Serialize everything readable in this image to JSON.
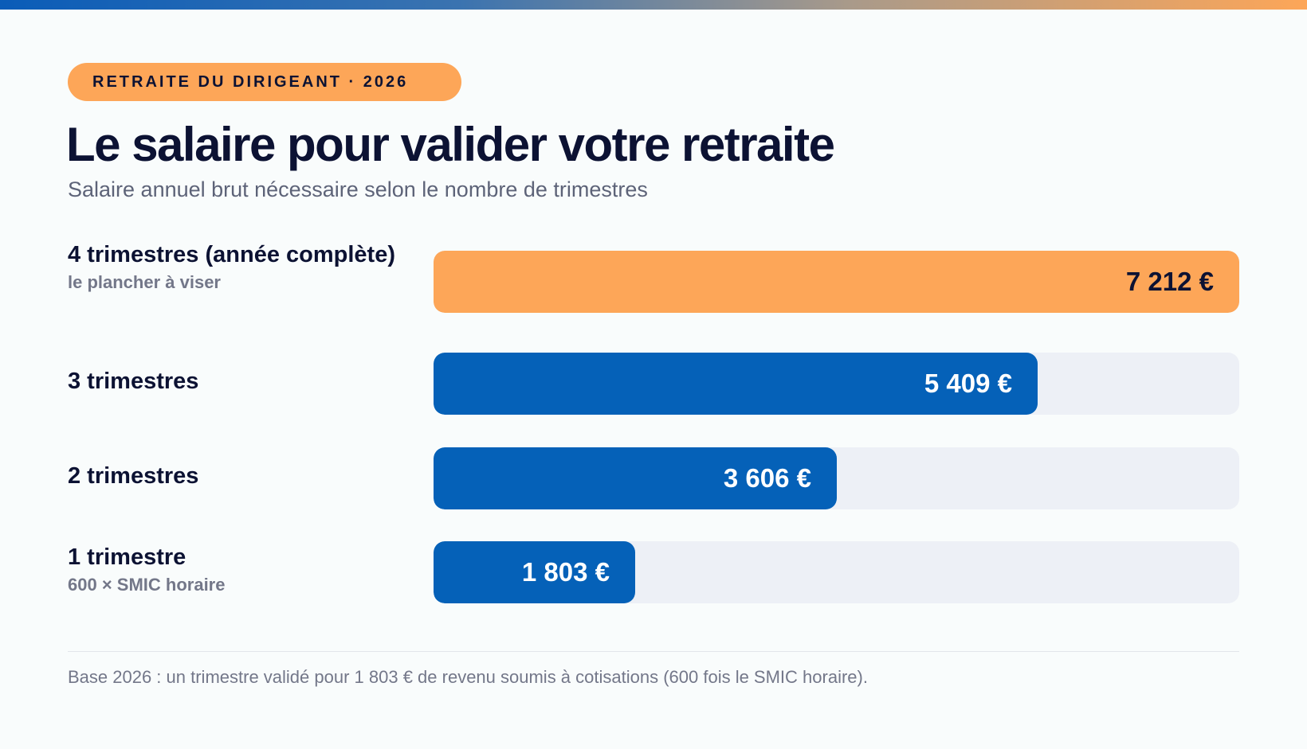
{
  "kicker": "RETRAITE DU DIRIGEANT · 2026",
  "title": "Le salaire pour valider votre retraite",
  "subtitle": "Salaire annuel brut nécessaire selon le nombre de trimestres",
  "colors": {
    "accent": "#fda658",
    "primary": "#0561b8",
    "track": "#edf0f6",
    "text": "#0c1233"
  },
  "chart_data": {
    "type": "bar",
    "orientation": "horizontal",
    "title": "Le salaire pour valider votre retraite",
    "subtitle": "Salaire annuel brut nécessaire selon le nombre de trimestres",
    "categories": [
      "4 trimestres (année complète)",
      "3 trimestres",
      "2 trimestres",
      "1 trimestre"
    ],
    "values": [
      7212,
      5409,
      3606,
      1803
    ],
    "value_labels": [
      "7 212 €",
      "5 409 €",
      "3 606 €",
      "1 803 €"
    ],
    "notes": [
      "le plancher à viser",
      "",
      "",
      "600 × SMIC horaire"
    ],
    "xlim": [
      0,
      7212
    ],
    "highlight_index": 0,
    "grid": false
  },
  "footnote": "Base 2026 : un trimestre validé pour 1 803 € de revenu soumis à cotisations (600 fois le SMIC horaire)."
}
